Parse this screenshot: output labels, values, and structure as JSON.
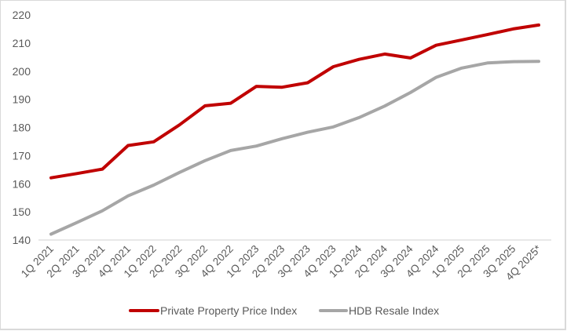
{
  "chart_data": {
    "type": "line",
    "title": "",
    "xlabel": "",
    "ylabel": "",
    "categories": [
      "1Q 2021",
      "2Q 2021",
      "3Q 2021",
      "4Q 2021",
      "1Q 2022",
      "2Q 2022",
      "3Q 2022",
      "4Q 2022",
      "1Q 2023",
      "2Q 2023",
      "3Q 2023",
      "4Q 2023",
      "1Q 2024",
      "2Q 2024",
      "3Q 2024",
      "4Q 2024",
      "1Q 2025",
      "2Q 2025",
      "3Q 2025",
      "4Q 2025*"
    ],
    "series": [
      {
        "name": "Private Property Price Index",
        "color": "#c00000",
        "values": [
          162.1,
          163.6,
          165.2,
          173.6,
          174.9,
          180.9,
          187.7,
          188.6,
          194.6,
          194.3,
          195.9,
          201.6,
          204.2,
          206.1,
          204.7,
          209.2,
          211.1,
          213.0,
          215.0,
          216.4
        ]
      },
      {
        "name": "HDB Resale Index",
        "color": "#a6a6a6",
        "values": [
          142.1,
          146.2,
          150.4,
          155.7,
          159.5,
          164.0,
          168.2,
          171.8,
          173.4,
          176.0,
          178.3,
          180.2,
          183.5,
          187.6,
          192.4,
          197.8,
          201.1,
          202.9,
          203.4,
          203.5
        ]
      }
    ],
    "ylim": [
      140,
      220
    ],
    "yticks": [
      140,
      150,
      160,
      170,
      180,
      190,
      200,
      210,
      220
    ],
    "grid": false,
    "legend_position": "bottom"
  }
}
